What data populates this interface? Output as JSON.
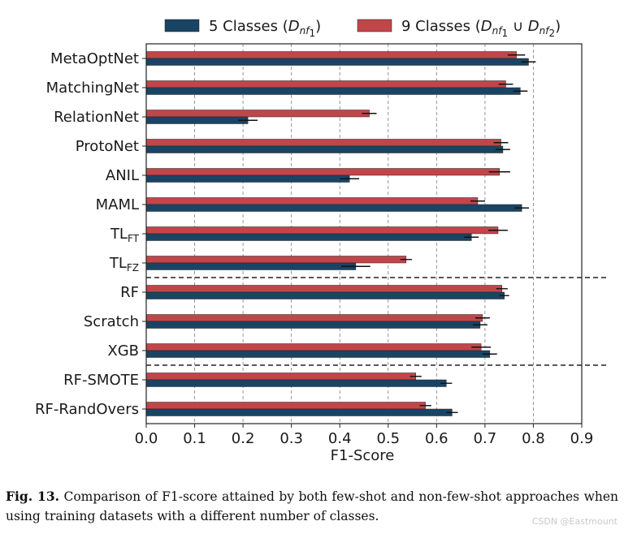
{
  "chart_data": {
    "type": "bar",
    "orientation": "horizontal",
    "xlabel": "F1-Score",
    "xlim": [
      0.0,
      0.9
    ],
    "xticks": [
      "0.0",
      "0.1",
      "0.2",
      "0.3",
      "0.4",
      "0.5",
      "0.6",
      "0.7",
      "0.8",
      "0.9"
    ],
    "grid": "vertical dashed",
    "legend_position": "top",
    "categories": [
      {
        "main": "MetaOptNet",
        "sub": ""
      },
      {
        "main": "MatchingNet",
        "sub": ""
      },
      {
        "main": "RelationNet",
        "sub": ""
      },
      {
        "main": "ProtoNet",
        "sub": ""
      },
      {
        "main": "ANIL",
        "sub": ""
      },
      {
        "main": "MAML",
        "sub": ""
      },
      {
        "main": "TL",
        "sub": "FT"
      },
      {
        "main": "TL",
        "sub": "FZ"
      },
      {
        "main": "RF",
        "sub": ""
      },
      {
        "main": "Scratch",
        "sub": ""
      },
      {
        "main": "XGB",
        "sub": ""
      },
      {
        "main": "RF-SMOTE",
        "sub": ""
      },
      {
        "main": "RF-RandOvers",
        "sub": ""
      }
    ],
    "separators_after_index": [
      7,
      10
    ],
    "series": [
      {
        "name": "9 Classes",
        "legend_label": {
          "text": "9 Classes (D",
          "sub1": "nf",
          "sub1sub": "1",
          "mid": " ∪ D",
          "sub2": "nf",
          "sub2sub": "2",
          "end": ")"
        },
        "color": "#c0464a",
        "values": [
          0.765,
          0.743,
          0.461,
          0.733,
          0.73,
          0.685,
          0.727,
          0.537,
          0.735,
          0.695,
          0.692,
          0.557,
          0.577
        ],
        "errors": [
          0.018,
          0.015,
          0.015,
          0.015,
          0.022,
          0.015,
          0.02,
          0.012,
          0.012,
          0.015,
          0.02,
          0.012,
          0.012
        ]
      },
      {
        "name": "5 Classes",
        "legend_label": {
          "text": "5 Classes (D",
          "sub1": "nf",
          "sub1sub": "1",
          "end": ")"
        },
        "color": "#1a4464",
        "values": [
          0.79,
          0.773,
          0.21,
          0.737,
          0.42,
          0.776,
          0.672,
          0.433,
          0.74,
          0.69,
          0.71,
          0.62,
          0.632
        ],
        "errors": [
          0.015,
          0.015,
          0.02,
          0.015,
          0.02,
          0.015,
          0.015,
          0.03,
          0.01,
          0.015,
          0.015,
          0.012,
          0.012
        ]
      }
    ]
  },
  "caption": {
    "label": "Fig. 13.",
    "text": "Comparison of F1-score attained by both few-shot and non-few-shot approaches when using training datasets with a different number of classes."
  },
  "watermark": "CSDN @Eastmount"
}
